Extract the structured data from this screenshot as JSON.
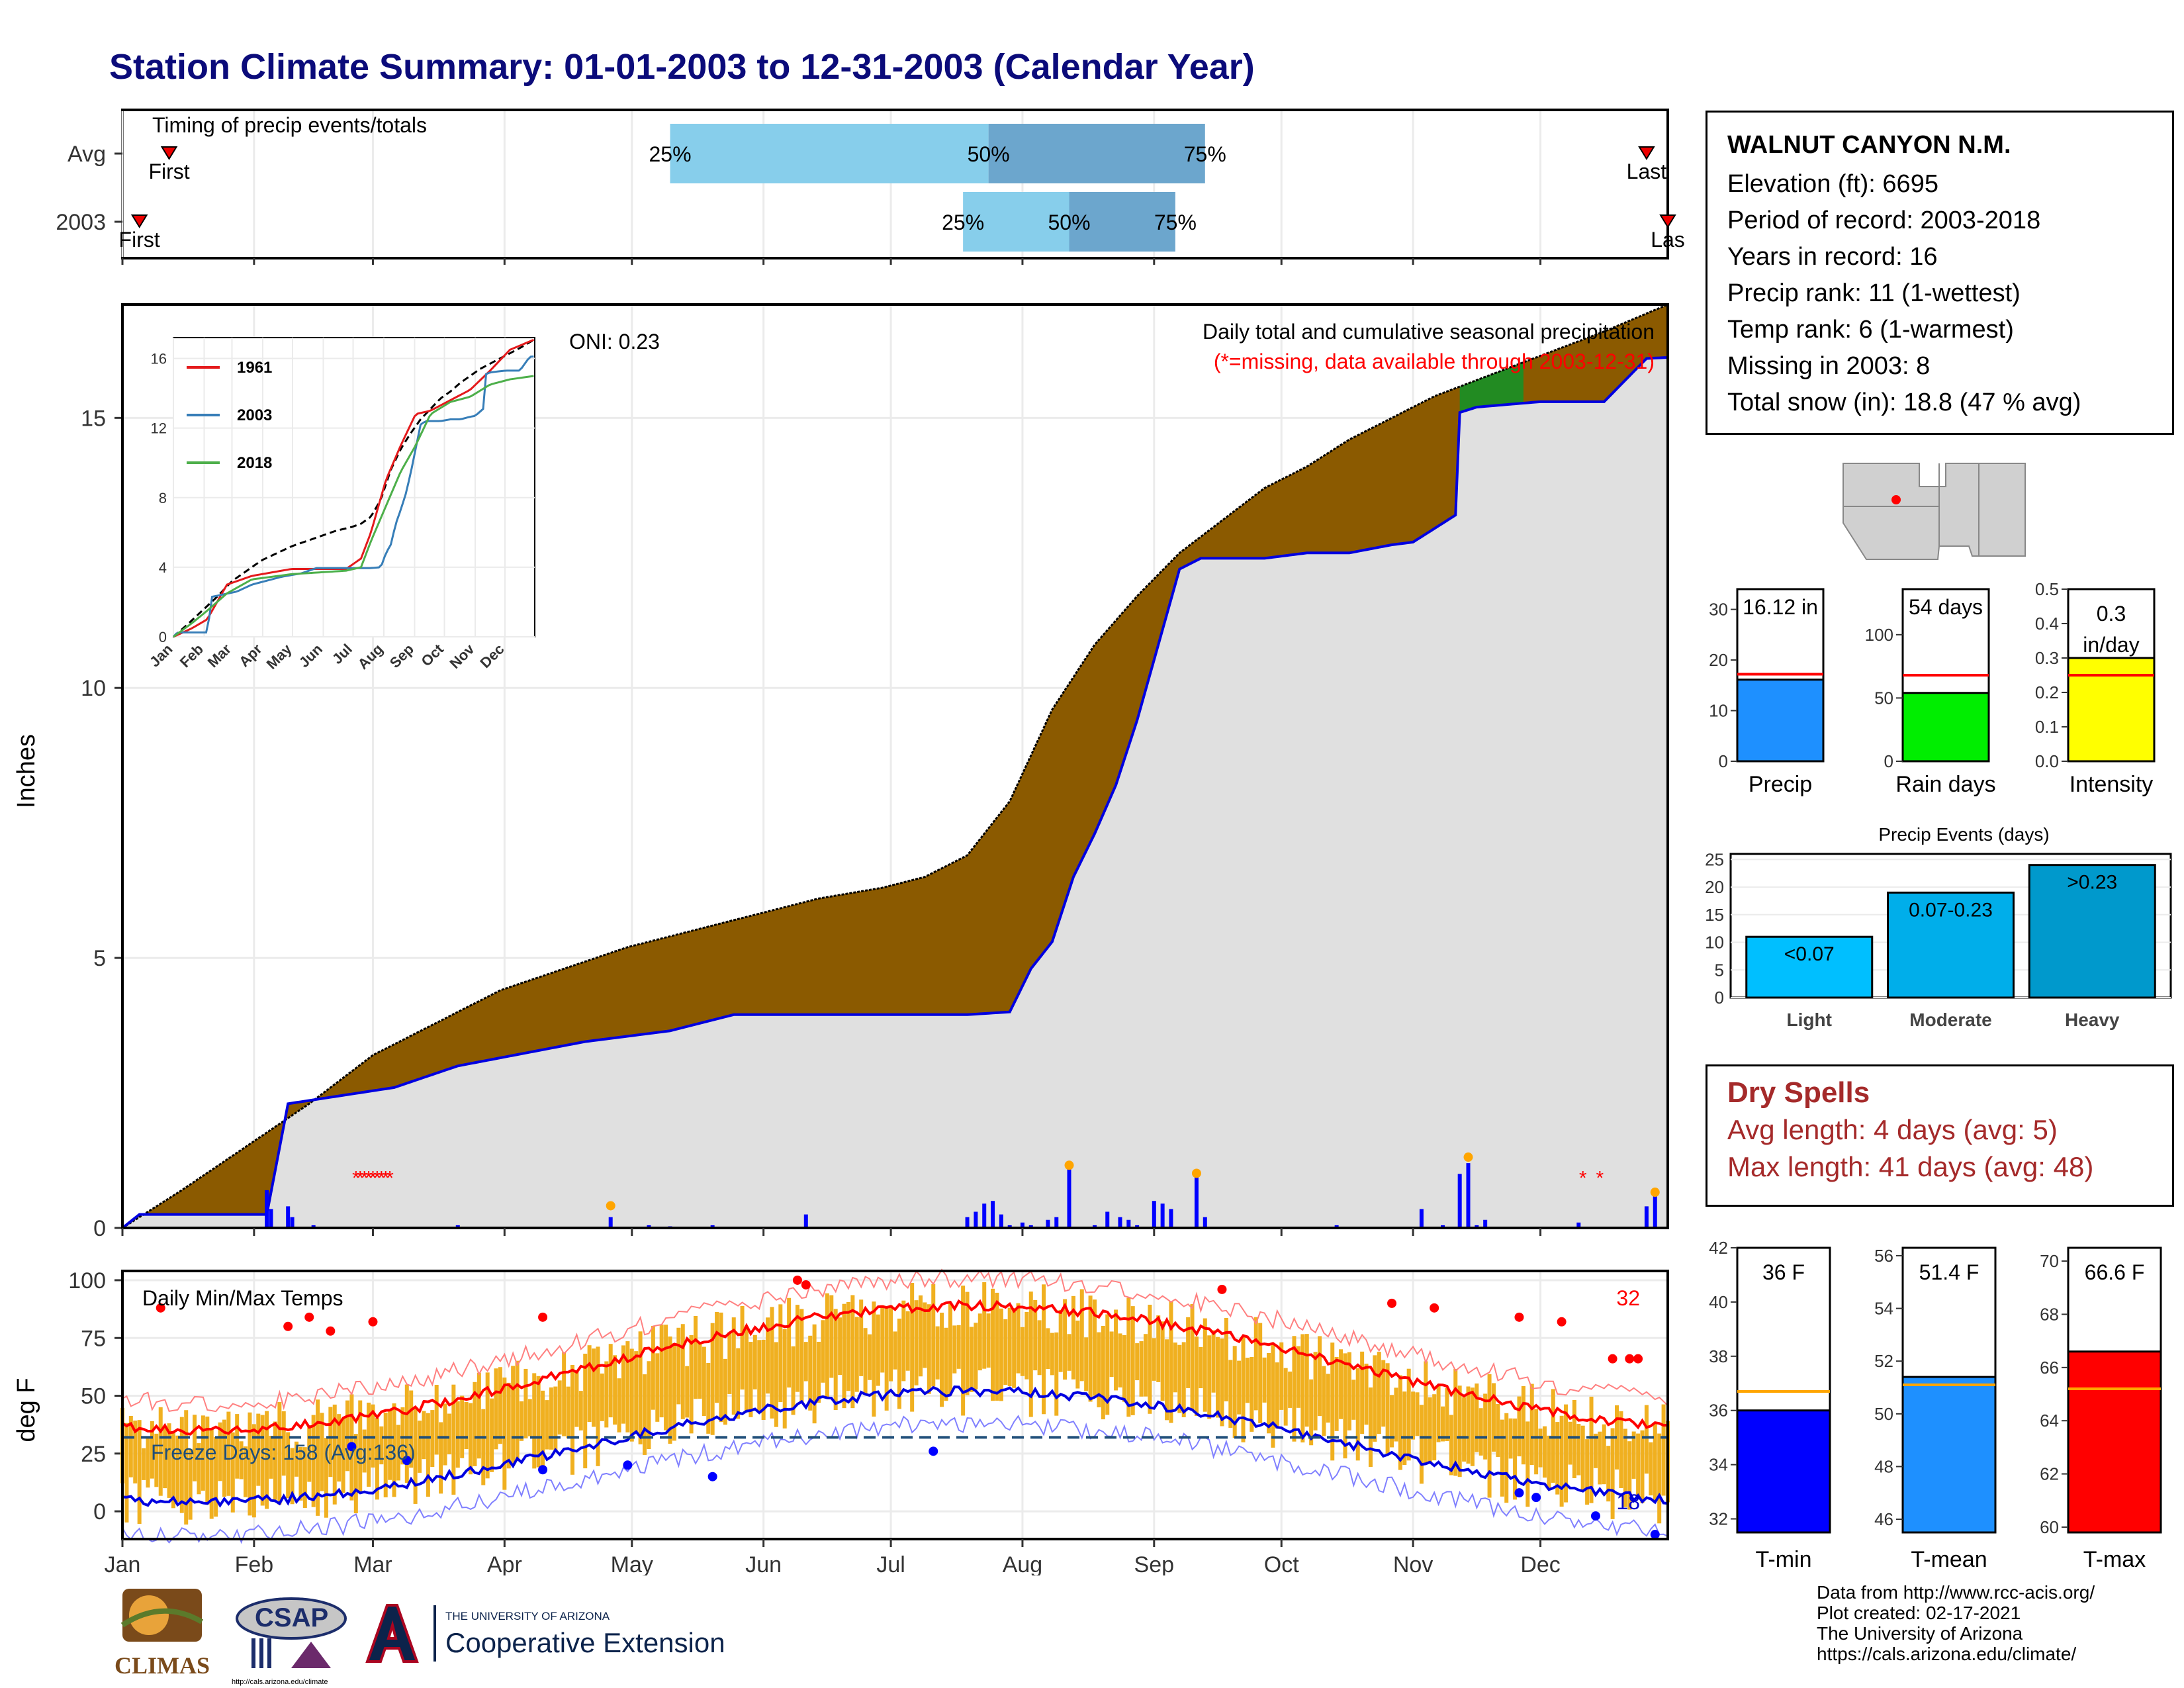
{
  "title": "Station Climate Summary: 01-01-2003 to 12-31-2003 (Calendar Year)",
  "timing": {
    "label": "Timing of precip events/totals",
    "rows": [
      {
        "name": "Avg",
        "first_doy": 12,
        "last_doy": 360,
        "p25_doy": 130,
        "p50_doy": 205,
        "p75_doy": 256,
        "first_label": "First",
        "last_label": "Last"
      },
      {
        "name": "2003",
        "first_doy": 5,
        "last_doy": 365,
        "p25_doy": 199,
        "p50_doy": 224,
        "p75_doy": 249,
        "first_label": "First",
        "last_label": "Las"
      }
    ],
    "pct_labels": [
      "25%",
      "50%",
      "75%"
    ]
  },
  "main_plot": {
    "ylabel": "Inches",
    "header": "Daily total and cumulative seasonal precipitation",
    "subheader": "(*=missing, data available through 2003-12-31)",
    "oni": "ONI: 0.23",
    "yticks": [
      0,
      5,
      10,
      15
    ],
    "ymax": 17.1
  },
  "inset": {
    "yticks": [
      0,
      4,
      8,
      12,
      16
    ],
    "months": [
      "Jan",
      "Feb",
      "Mar",
      "Apr",
      "May",
      "Jun",
      "Jul",
      "Aug",
      "Sep",
      "Oct",
      "Nov",
      "Dec"
    ],
    "legend": [
      {
        "name": "1961",
        "color": "#e41a1c"
      },
      {
        "name": "2003",
        "color": "#377eb8"
      },
      {
        "name": "2018",
        "color": "#4daf4a"
      }
    ]
  },
  "temp_plot": {
    "ylabel": "deg F",
    "label": "Daily Min/Max Temps",
    "freeze_text": "Freeze Days: 158 (Avg:136)",
    "hot_count": "32",
    "cold_count": "18",
    "yticks": [
      0,
      25,
      50,
      75,
      100
    ],
    "freeze_line": 32
  },
  "months": [
    "Jan",
    "Feb",
    "Mar",
    "Apr",
    "May",
    "Jun",
    "Jul",
    "Aug",
    "Sep",
    "Oct",
    "Nov",
    "Dec"
  ],
  "station": {
    "name": "WALNUT CANYON N.M.",
    "lines": [
      "Elevation (ft): 6695",
      "Period of record: 2003-2018",
      "Years in record: 16",
      "Precip rank: 11 (1-wettest)",
      "Temp rank: 6 (1-warmest)",
      "Missing in 2003: 8",
      "Total snow (in): 18.8 (47 % avg)"
    ]
  },
  "summary_bars": [
    {
      "label": "Precip",
      "value_text": "16.12 in",
      "value": 16.12,
      "avg": 17.2,
      "ymax": 34,
      "ticks": [
        0,
        10,
        20,
        30
      ],
      "color": "#1e90ff"
    },
    {
      "label": "Rain days",
      "value_text": "54 days",
      "value": 54,
      "avg": 68,
      "ymax": 136,
      "ticks": [
        0,
        50,
        100
      ],
      "color": "#00ee00"
    },
    {
      "label": "Intensity",
      "value_text": "0.3 in/day",
      "value": 0.3,
      "avg": 0.25,
      "ymax": 0.5,
      "ticks": [
        0.0,
        0.1,
        0.2,
        0.3,
        0.4,
        0.5
      ],
      "color": "#ffff00"
    }
  ],
  "events": {
    "title": "Precip Events (days)",
    "yticks": [
      0,
      5,
      10,
      15,
      20,
      25
    ],
    "bars": [
      {
        "label": "Light",
        "range": "<0.07",
        "value": 11,
        "color": "#00bfff"
      },
      {
        "label": "Moderate",
        "range": "0.07-0.23",
        "value": 19,
        "color": "#00aeea"
      },
      {
        "label": "Heavy",
        "range": ">0.23",
        "value": 24,
        "color": "#0099cc"
      }
    ]
  },
  "dry_spells": {
    "title": "Dry Spells",
    "avg_line": "Avg length: 4 days (avg: 5)",
    "max_line": "Max length: 41 days (avg: 48)"
  },
  "temp_bars": [
    {
      "label": "T-min",
      "value_text": "36 F",
      "value": 36,
      "avg": 36.7,
      "ymin": 31.5,
      "ymax": 42,
      "ticks": [
        32,
        34,
        36,
        38,
        40,
        42
      ],
      "color": "#0000ff"
    },
    {
      "label": "T-mean",
      "value_text": "51.4 F",
      "value": 51.4,
      "avg": 51.1,
      "ymin": 45.5,
      "ymax": 56.3,
      "ticks": [
        46,
        48,
        50,
        52,
        54,
        56
      ],
      "color": "#1e90ff"
    },
    {
      "label": "T-max",
      "value_text": "66.6 F",
      "value": 66.6,
      "avg": 65.2,
      "ymin": 59.8,
      "ymax": 70.5,
      "ticks": [
        60,
        62,
        64,
        66,
        68,
        70
      ],
      "color": "#ff0000"
    }
  ],
  "credits": [
    "Data from http://www.rcc-acis.org/",
    "Plot created: 02-17-2021",
    "The University of Arizona",
    "https://cals.arizona.edu/climate/"
  ],
  "logos": {
    "climas": "CLIMAS",
    "csap": "CSAP",
    "csap_url": "http://cals.arizona.edu/climate",
    "ua_top": "THE UNIVERSITY OF ARIZONA",
    "ua_bottom": "Cooperative Extension"
  },
  "chart_data": [
    {
      "type": "area",
      "title": "Daily total and cumulative seasonal precipitation",
      "ylabel": "Inches",
      "ylim": [
        0,
        17.1
      ],
      "series": [
        {
          "name": "Average cumulative",
          "x": [
            1,
            15,
            30,
            45,
            60,
            75,
            90,
            105,
            120,
            135,
            150,
            165,
            180,
            190,
            200,
            210,
            220,
            230,
            240,
            250,
            260,
            270,
            280,
            290,
            300,
            310,
            320,
            330,
            340,
            350,
            365
          ],
          "values": [
            0,
            0.7,
            1.5,
            2.3,
            3.2,
            3.8,
            4.4,
            4.8,
            5.2,
            5.5,
            5.8,
            6.1,
            6.3,
            6.5,
            6.9,
            7.9,
            9.6,
            10.8,
            11.7,
            12.5,
            13.1,
            13.7,
            14.1,
            14.6,
            15.0,
            15.4,
            15.7,
            16.0,
            16.3,
            16.6,
            17.1
          ]
        },
        {
          "name": "2003 cumulative",
          "x": [
            1,
            5,
            35,
            40,
            65,
            80,
            110,
            130,
            145,
            160,
            180,
            200,
            210,
            215,
            220,
            225,
            230,
            235,
            240,
            245,
            250,
            255,
            260,
            270,
            280,
            290,
            300,
            305,
            315,
            316,
            320,
            335,
            350,
            360,
            365
          ],
          "values": [
            0,
            0.25,
            0.25,
            2.3,
            2.6,
            3.0,
            3.45,
            3.65,
            3.95,
            3.95,
            3.95,
            3.95,
            4.0,
            4.8,
            5.3,
            6.5,
            7.3,
            8.2,
            9.4,
            10.8,
            12.2,
            12.4,
            12.4,
            12.4,
            12.5,
            12.5,
            12.65,
            12.7,
            13.2,
            15.1,
            15.2,
            15.3,
            15.3,
            16.1,
            16.12
          ]
        }
      ]
    },
    {
      "type": "bar",
      "title": "Precip",
      "categories": [
        "Precip",
        "Rain days",
        "Intensity"
      ],
      "values": [
        16.12,
        54,
        0.3
      ]
    },
    {
      "type": "bar",
      "title": "Precip Events (days)",
      "categories": [
        "Light",
        "Moderate",
        "Heavy"
      ],
      "values": [
        11,
        19,
        24
      ]
    },
    {
      "type": "bar",
      "categories": [
        "T-min",
        "T-mean",
        "T-max"
      ],
      "values": [
        36,
        51.4,
        66.6
      ]
    }
  ]
}
